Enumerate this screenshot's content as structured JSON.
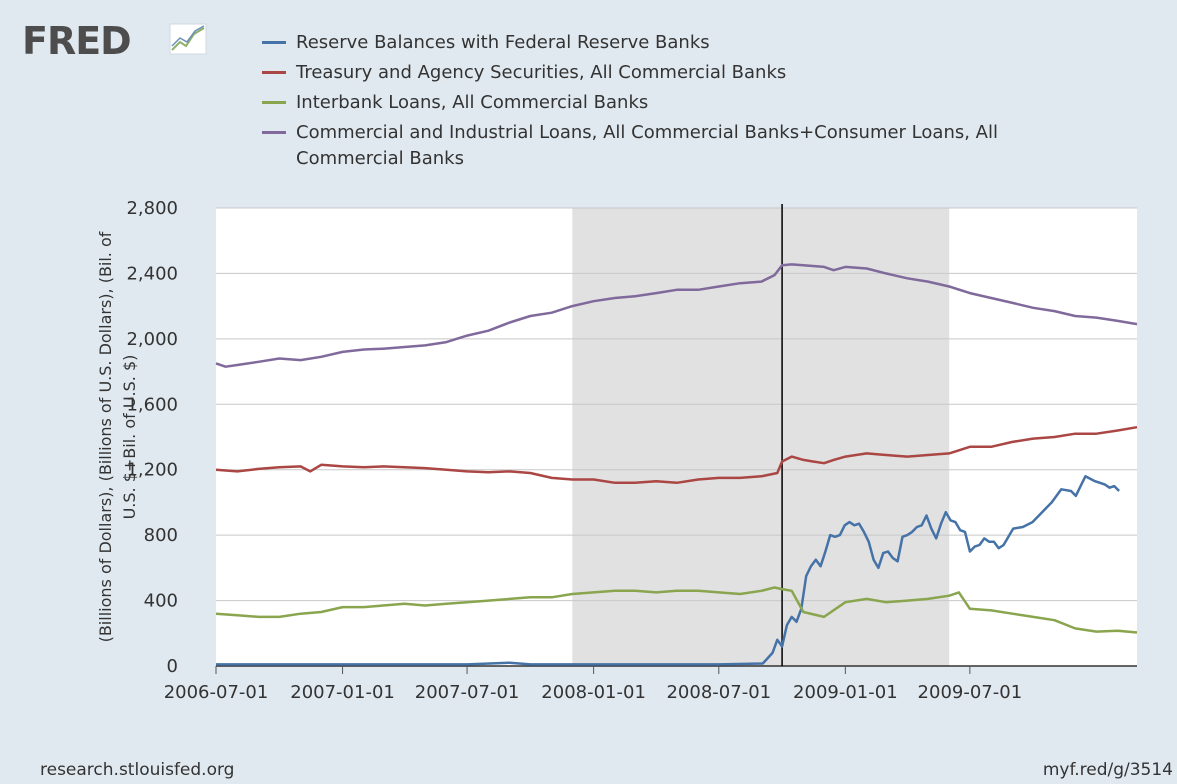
{
  "brand": {
    "name": "FRED"
  },
  "footer": {
    "source": "research.stlouisfed.org",
    "link": "myf.red/g/3514"
  },
  "chart_data": {
    "type": "line",
    "title": "",
    "ylabel_lines": [
      "(Billions of Dollars), (Billions of U.S. Dollars), (Bil. of",
      "U.S. $+Bil. of U.S. $)"
    ],
    "xlabel": "",
    "ylim": [
      0,
      2800
    ],
    "xlim": [
      "2006-07-01",
      "2010-03-01"
    ],
    "y_ticks": [
      0,
      400,
      800,
      1200,
      1600,
      2000,
      2400,
      2800
    ],
    "y_tick_labels": [
      "0",
      "400",
      "800",
      "1,200",
      "1,600",
      "2,000",
      "2,400",
      "2,800"
    ],
    "x_tick_labels": [
      "2006-07-01",
      "2007-01-01",
      "2007-07-01",
      "2008-01-01",
      "2008-07-01",
      "2009-01-01",
      "2009-07-01"
    ],
    "grid": true,
    "legend_position": "top",
    "recession": {
      "start": "2007-12-01",
      "end": "2009-06-01",
      "color": "#e1e1e1"
    },
    "vertical_line": "2008-10-01",
    "series": [
      {
        "name": "Reserve Balances with Federal Reserve Banks",
        "color": "#4572a7",
        "points": [
          [
            "2006-07-01",
            10
          ],
          [
            "2007-01-01",
            10
          ],
          [
            "2007-07-01",
            10
          ],
          [
            "2007-09-01",
            20
          ],
          [
            "2007-10-01",
            10
          ],
          [
            "2008-01-01",
            10
          ],
          [
            "2008-07-01",
            10
          ],
          [
            "2008-09-03",
            15
          ],
          [
            "2008-09-17",
            80
          ],
          [
            "2008-09-24",
            160
          ],
          [
            "2008-10-01",
            120
          ],
          [
            "2008-10-08",
            250
          ],
          [
            "2008-10-15",
            300
          ],
          [
            "2008-10-22",
            270
          ],
          [
            "2008-10-29",
            350
          ],
          [
            "2008-11-05",
            550
          ],
          [
            "2008-11-12",
            610
          ],
          [
            "2008-11-19",
            650
          ],
          [
            "2008-11-26",
            610
          ],
          [
            "2008-12-03",
            700
          ],
          [
            "2008-12-10",
            800
          ],
          [
            "2008-12-17",
            790
          ],
          [
            "2008-12-24",
            800
          ],
          [
            "2008-12-31",
            860
          ],
          [
            "2009-01-07",
            880
          ],
          [
            "2009-01-14",
            860
          ],
          [
            "2009-01-21",
            870
          ],
          [
            "2009-01-28",
            820
          ],
          [
            "2009-02-04",
            760
          ],
          [
            "2009-02-11",
            650
          ],
          [
            "2009-02-18",
            600
          ],
          [
            "2009-02-25",
            690
          ],
          [
            "2009-03-04",
            700
          ],
          [
            "2009-03-11",
            660
          ],
          [
            "2009-03-18",
            640
          ],
          [
            "2009-03-25",
            790
          ],
          [
            "2009-04-01",
            800
          ],
          [
            "2009-04-08",
            820
          ],
          [
            "2009-04-15",
            850
          ],
          [
            "2009-04-22",
            860
          ],
          [
            "2009-04-29",
            920
          ],
          [
            "2009-05-06",
            840
          ],
          [
            "2009-05-13",
            780
          ],
          [
            "2009-05-20",
            870
          ],
          [
            "2009-05-27",
            940
          ],
          [
            "2009-06-03",
            890
          ],
          [
            "2009-06-10",
            880
          ],
          [
            "2009-06-17",
            830
          ],
          [
            "2009-06-24",
            820
          ],
          [
            "2009-07-01",
            700
          ],
          [
            "2009-07-08",
            730
          ],
          [
            "2009-07-15",
            740
          ],
          [
            "2009-07-22",
            780
          ],
          [
            "2009-07-29",
            760
          ],
          [
            "2009-08-05",
            760
          ],
          [
            "2009-08-12",
            720
          ],
          [
            "2009-08-19",
            740
          ],
          [
            "2009-08-26",
            790
          ],
          [
            "2009-09-02",
            840
          ],
          [
            "2009-09-16",
            850
          ],
          [
            "2009-09-30",
            880
          ],
          [
            "2009-10-14",
            940
          ],
          [
            "2009-10-28",
            1000
          ],
          [
            "2009-11-11",
            1080
          ],
          [
            "2009-11-25",
            1070
          ],
          [
            "2009-12-02",
            1040
          ],
          [
            "2009-12-09",
            1100
          ],
          [
            "2009-12-16",
            1160
          ],
          [
            "2009-12-30",
            1130
          ],
          [
            "2010-01-13",
            1110
          ],
          [
            "2010-01-20",
            1090
          ],
          [
            "2010-01-27",
            1100
          ],
          [
            "2010-02-03",
            1070
          ]
        ]
      },
      {
        "name": "Treasury and Agency Securities, All Commercial Banks",
        "color": "#aa4643",
        "points": [
          [
            "2006-07-01",
            1200
          ],
          [
            "2006-08-01",
            1190
          ],
          [
            "2006-09-01",
            1205
          ],
          [
            "2006-10-01",
            1215
          ],
          [
            "2006-11-01",
            1220
          ],
          [
            "2006-11-15",
            1190
          ],
          [
            "2006-12-01",
            1230
          ],
          [
            "2007-01-01",
            1220
          ],
          [
            "2007-02-01",
            1215
          ],
          [
            "2007-03-01",
            1220
          ],
          [
            "2007-04-01",
            1215
          ],
          [
            "2007-05-01",
            1210
          ],
          [
            "2007-06-01",
            1200
          ],
          [
            "2007-07-01",
            1190
          ],
          [
            "2007-08-01",
            1185
          ],
          [
            "2007-09-01",
            1190
          ],
          [
            "2007-10-01",
            1180
          ],
          [
            "2007-11-01",
            1150
          ],
          [
            "2007-12-01",
            1140
          ],
          [
            "2008-01-01",
            1140
          ],
          [
            "2008-02-01",
            1120
          ],
          [
            "2008-03-01",
            1120
          ],
          [
            "2008-04-01",
            1130
          ],
          [
            "2008-05-01",
            1120
          ],
          [
            "2008-06-01",
            1140
          ],
          [
            "2008-07-01",
            1150
          ],
          [
            "2008-08-01",
            1150
          ],
          [
            "2008-09-01",
            1160
          ],
          [
            "2008-09-24",
            1180
          ],
          [
            "2008-10-01",
            1250
          ],
          [
            "2008-10-15",
            1280
          ],
          [
            "2008-11-01",
            1260
          ],
          [
            "2008-11-15",
            1250
          ],
          [
            "2008-12-01",
            1240
          ],
          [
            "2008-12-15",
            1260
          ],
          [
            "2009-01-01",
            1280
          ],
          [
            "2009-02-01",
            1300
          ],
          [
            "2009-03-01",
            1290
          ],
          [
            "2009-04-01",
            1280
          ],
          [
            "2009-05-01",
            1290
          ],
          [
            "2009-06-01",
            1300
          ],
          [
            "2009-07-01",
            1340
          ],
          [
            "2009-08-01",
            1340
          ],
          [
            "2009-09-01",
            1370
          ],
          [
            "2009-10-01",
            1390
          ],
          [
            "2009-11-01",
            1400
          ],
          [
            "2009-12-01",
            1420
          ],
          [
            "2010-01-01",
            1420
          ],
          [
            "2010-02-01",
            1440
          ],
          [
            "2010-03-01",
            1460
          ]
        ]
      },
      {
        "name": "Interbank Loans, All Commercial Banks",
        "color": "#89a54e",
        "points": [
          [
            "2006-07-01",
            320
          ],
          [
            "2006-08-01",
            310
          ],
          [
            "2006-09-01",
            300
          ],
          [
            "2006-10-01",
            300
          ],
          [
            "2006-11-01",
            320
          ],
          [
            "2006-12-01",
            330
          ],
          [
            "2007-01-01",
            360
          ],
          [
            "2007-02-01",
            360
          ],
          [
            "2007-03-01",
            370
          ],
          [
            "2007-04-01",
            380
          ],
          [
            "2007-05-01",
            370
          ],
          [
            "2007-06-01",
            380
          ],
          [
            "2007-07-01",
            390
          ],
          [
            "2007-08-01",
            400
          ],
          [
            "2007-09-01",
            410
          ],
          [
            "2007-10-01",
            420
          ],
          [
            "2007-11-01",
            420
          ],
          [
            "2007-12-01",
            440
          ],
          [
            "2008-01-01",
            450
          ],
          [
            "2008-02-01",
            460
          ],
          [
            "2008-03-01",
            460
          ],
          [
            "2008-04-01",
            450
          ],
          [
            "2008-05-01",
            460
          ],
          [
            "2008-06-01",
            460
          ],
          [
            "2008-07-01",
            450
          ],
          [
            "2008-08-01",
            440
          ],
          [
            "2008-09-01",
            460
          ],
          [
            "2008-09-20",
            480
          ],
          [
            "2008-10-01",
            470
          ],
          [
            "2008-10-15",
            460
          ],
          [
            "2008-11-01",
            330
          ],
          [
            "2008-12-01",
            300
          ],
          [
            "2009-01-01",
            390
          ],
          [
            "2009-02-01",
            410
          ],
          [
            "2009-03-01",
            390
          ],
          [
            "2009-04-01",
            400
          ],
          [
            "2009-05-01",
            410
          ],
          [
            "2009-06-01",
            430
          ],
          [
            "2009-06-15",
            450
          ],
          [
            "2009-07-01",
            350
          ],
          [
            "2009-08-01",
            340
          ],
          [
            "2009-09-01",
            320
          ],
          [
            "2009-10-01",
            300
          ],
          [
            "2009-11-01",
            280
          ],
          [
            "2009-12-01",
            230
          ],
          [
            "2010-01-01",
            210
          ],
          [
            "2010-02-01",
            215
          ],
          [
            "2010-03-01",
            205
          ]
        ]
      },
      {
        "name": "Commercial and Industrial Loans, All Commercial Banks+Consumer Loans, All Commercial Banks",
        "color": "#80699b",
        "points": [
          [
            "2006-07-01",
            1850
          ],
          [
            "2006-07-15",
            1830
          ],
          [
            "2006-08-01",
            1840
          ],
          [
            "2006-09-01",
            1860
          ],
          [
            "2006-10-01",
            1880
          ],
          [
            "2006-11-01",
            1870
          ],
          [
            "2006-12-01",
            1890
          ],
          [
            "2007-01-01",
            1920
          ],
          [
            "2007-02-01",
            1935
          ],
          [
            "2007-03-01",
            1940
          ],
          [
            "2007-04-01",
            1950
          ],
          [
            "2007-05-01",
            1960
          ],
          [
            "2007-06-01",
            1980
          ],
          [
            "2007-07-01",
            2020
          ],
          [
            "2007-08-01",
            2050
          ],
          [
            "2007-09-01",
            2100
          ],
          [
            "2007-10-01",
            2140
          ],
          [
            "2007-11-01",
            2160
          ],
          [
            "2007-12-01",
            2200
          ],
          [
            "2008-01-01",
            2230
          ],
          [
            "2008-02-01",
            2250
          ],
          [
            "2008-03-01",
            2260
          ],
          [
            "2008-04-01",
            2280
          ],
          [
            "2008-05-01",
            2300
          ],
          [
            "2008-06-01",
            2300
          ],
          [
            "2008-07-01",
            2320
          ],
          [
            "2008-08-01",
            2340
          ],
          [
            "2008-09-01",
            2350
          ],
          [
            "2008-09-20",
            2390
          ],
          [
            "2008-10-01",
            2450
          ],
          [
            "2008-10-15",
            2455
          ],
          [
            "2008-11-01",
            2450
          ],
          [
            "2008-12-01",
            2440
          ],
          [
            "2008-12-15",
            2420
          ],
          [
            "2009-01-01",
            2440
          ],
          [
            "2009-02-01",
            2430
          ],
          [
            "2009-03-01",
            2400
          ],
          [
            "2009-04-01",
            2370
          ],
          [
            "2009-05-01",
            2350
          ],
          [
            "2009-06-01",
            2320
          ],
          [
            "2009-07-01",
            2280
          ],
          [
            "2009-08-01",
            2250
          ],
          [
            "2009-09-01",
            2220
          ],
          [
            "2009-10-01",
            2190
          ],
          [
            "2009-11-01",
            2170
          ],
          [
            "2009-12-01",
            2140
          ],
          [
            "2010-01-01",
            2130
          ],
          [
            "2010-02-01",
            2110
          ],
          [
            "2010-03-01",
            2090
          ]
        ]
      }
    ]
  }
}
